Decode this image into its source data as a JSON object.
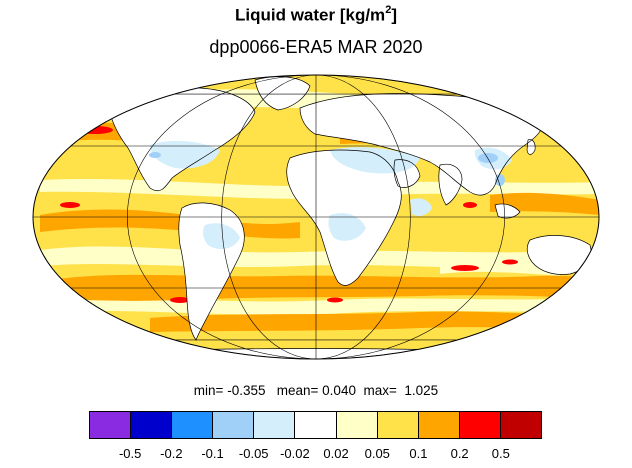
{
  "title": {
    "main": "Liquid water  [kg/m",
    "unit_exponent": "2",
    "unit_close": "]"
  },
  "subtitle": "dpp0066-ERA5 MAR 2020",
  "stats": {
    "min_label": "min=",
    "min_value": "-0.355",
    "mean_label": "mean=",
    "mean_value": "0.040",
    "max_label": "max=",
    "max_value": "1.025"
  },
  "colorbar": {
    "colors": [
      "#8a2be2",
      "#0000cd",
      "#1e90ff",
      "#a0cff8",
      "#d4eefc",
      "#ffffff",
      "#ffffc8",
      "#ffe14a",
      "#ffa500",
      "#ff0000",
      "#c00000"
    ],
    "labels": [
      "-0.5",
      "-0.2",
      "-0.1",
      "-0.05",
      "-0.02",
      "0.02",
      "0.05",
      "0.1",
      "0.2",
      "0.5"
    ]
  },
  "map": {
    "projection": "Mollweide",
    "ocean_fill_color": "#ffe14a",
    "ocean_light_color": "#ffffc8",
    "ocean_strong_color": "#ffa500",
    "land_color": "#ffffff",
    "negative_color": "#d4eefc",
    "negative_strong_color": "#a0cff8",
    "gridline_color": "#000000"
  }
}
